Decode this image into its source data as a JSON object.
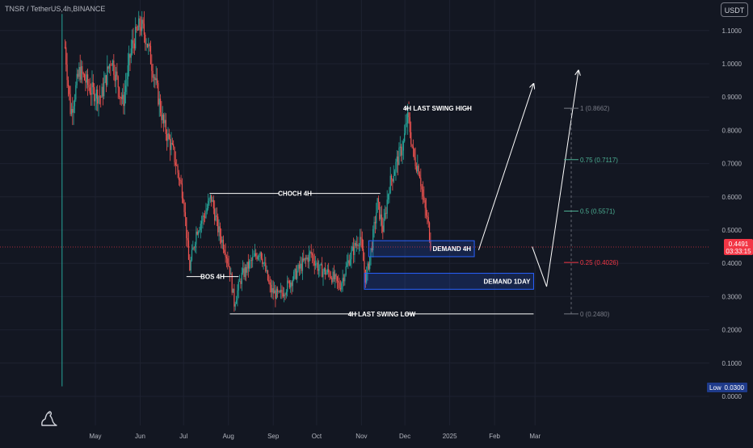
{
  "header": {
    "symbol": "TNSR / TetherUS",
    "interval": "4h",
    "exchange": "BINANCE",
    "sep1": ", ",
    "sep2": ", "
  },
  "currency_button": "USDT",
  "colors": {
    "background": "#131722",
    "grid": "#1e2230",
    "up_candle": "#26a69a",
    "down_candle": "#ef5350",
    "annotation": "#ffffff",
    "demand_box": "#2962ff",
    "fib_0_75": "#4caf93",
    "fib_0_25": "#f23645",
    "fib_neutral": "#787b86",
    "current_price": "#f23645",
    "low_badge": "#1e3a8a"
  },
  "chart_data": {
    "type": "candlestick",
    "title": "",
    "xlabel": "",
    "ylabel": "",
    "ylim": [
      -0.02,
      1.18
    ],
    "grid": true,
    "y_axis_ticks": [
      "1.1000",
      "1.0000",
      "0.9000",
      "0.8000",
      "0.7000",
      "0.6000",
      "0.5000",
      "0.4000",
      "0.3000",
      "0.2000",
      "0.1000",
      "0.0000"
    ],
    "y_axis_tick_values": [
      1.1,
      1.0,
      0.9,
      0.8,
      0.7,
      0.6,
      0.5,
      0.4,
      0.3,
      0.2,
      0.1,
      0.0
    ],
    "x_axis_ticks": [
      "May",
      "Jun",
      "Jul",
      "Aug",
      "Sep",
      "Oct",
      "Nov",
      "Dec",
      "2025",
      "Feb",
      "Mar"
    ],
    "x_axis_tick_dates": [
      "2024-05-01",
      "2024-06-01",
      "2024-07-01",
      "2024-08-01",
      "2024-09-01",
      "2024-10-01",
      "2024-11-01",
      "2024-12-01",
      "2025-01-01",
      "2025-02-01",
      "2025-03-01"
    ],
    "price_path": {
      "description": "approximate closing-price path",
      "dates": [
        "2024-04-08",
        "2024-04-10",
        "2024-04-14",
        "2024-04-20",
        "2024-04-28",
        "2024-05-05",
        "2024-05-12",
        "2024-05-20",
        "2024-05-26",
        "2024-06-01",
        "2024-06-05",
        "2024-06-10",
        "2024-06-17",
        "2024-06-24",
        "2024-07-01",
        "2024-07-05",
        "2024-07-10",
        "2024-07-16",
        "2024-07-20",
        "2024-07-25",
        "2024-07-30",
        "2024-08-02",
        "2024-08-05",
        "2024-08-10",
        "2024-08-16",
        "2024-08-23",
        "2024-08-30",
        "2024-09-05",
        "2024-09-12",
        "2024-09-20",
        "2024-09-27",
        "2024-10-03",
        "2024-10-10",
        "2024-10-17",
        "2024-10-24",
        "2024-10-31",
        "2024-11-04",
        "2024-11-08",
        "2024-11-12",
        "2024-11-16",
        "2024-11-20",
        "2024-11-25",
        "2024-11-30",
        "2024-12-03",
        "2024-12-07",
        "2024-12-11",
        "2024-12-14",
        "2024-12-17",
        "2024-12-19"
      ],
      "closes": [
        0.33,
        1.05,
        0.85,
        0.98,
        0.92,
        0.9,
        1.02,
        0.88,
        1.05,
        1.12,
        1.08,
        0.98,
        0.82,
        0.73,
        0.6,
        0.38,
        0.5,
        0.55,
        0.6,
        0.5,
        0.44,
        0.38,
        0.28,
        0.36,
        0.4,
        0.44,
        0.32,
        0.3,
        0.34,
        0.39,
        0.43,
        0.38,
        0.37,
        0.33,
        0.42,
        0.48,
        0.35,
        0.45,
        0.58,
        0.5,
        0.63,
        0.7,
        0.76,
        0.85,
        0.72,
        0.68,
        0.58,
        0.52,
        0.45
      ]
    },
    "current_price": {
      "value": 0.4491,
      "label": "0.4491",
      "countdown": "03:33:15"
    },
    "low_marker": {
      "label": "Low",
      "value": "0.0300"
    },
    "annotations": {
      "swing_high": {
        "text": "4H LAST SWING HIGH",
        "price": 0.8662,
        "start": "2024-12-01",
        "end": "2025-01-15"
      },
      "choch": {
        "text": "CHOCH 4H",
        "price": 0.61,
        "start": "2024-07-19",
        "end": "2024-11-14"
      },
      "bos": {
        "text": "BOS 4H",
        "price": 0.36,
        "start": "2024-07-03",
        "end": "2024-08-08"
      },
      "swing_low": {
        "text": "4H LAST SWING LOW",
        "price": 0.248,
        "start": "2024-08-02",
        "end": "2025-02-28"
      },
      "demand_4h": {
        "text": "DEMAND 4H",
        "top": 0.468,
        "bottom": 0.42,
        "start": "2024-11-06",
        "end": "2025-01-18"
      },
      "demand_1day": {
        "text": "DEMAND 1DAY",
        "top": 0.37,
        "bottom": 0.322,
        "start": "2024-11-03",
        "end": "2025-02-28"
      }
    },
    "projections": [
      {
        "from_date": "2025-01-21",
        "from_price": 0.44,
        "to_date": "2025-02-28",
        "to_price": 0.94
      },
      {
        "from_date": "2025-02-27",
        "from_price": 0.45,
        "to_date": "2025-03-09",
        "to_price": 0.33
      },
      {
        "from_date": "2025-03-09",
        "from_price": 0.33,
        "to_date": "2025-03-31",
        "to_price": 0.98
      }
    ],
    "fibonacci": [
      {
        "ratio": "1",
        "price": 0.8662,
        "label": "1 (0.8662)",
        "color": "#787b86"
      },
      {
        "ratio": "0.75",
        "price": 0.7117,
        "label": "0.75 (0.7117)",
        "color": "#4caf93"
      },
      {
        "ratio": "0.5",
        "price": 0.5571,
        "label": "0.5 (0.5571)",
        "color": "#4caf93"
      },
      {
        "ratio": "0.25",
        "price": 0.4026,
        "label": "0.25 (0.4026)",
        "color": "#f23645"
      },
      {
        "ratio": "0",
        "price": 0.248,
        "label": "0 (0.2480)",
        "color": "#787b86"
      }
    ],
    "fib_anchor_dates": [
      "2025-03-21",
      "2025-03-31"
    ]
  }
}
